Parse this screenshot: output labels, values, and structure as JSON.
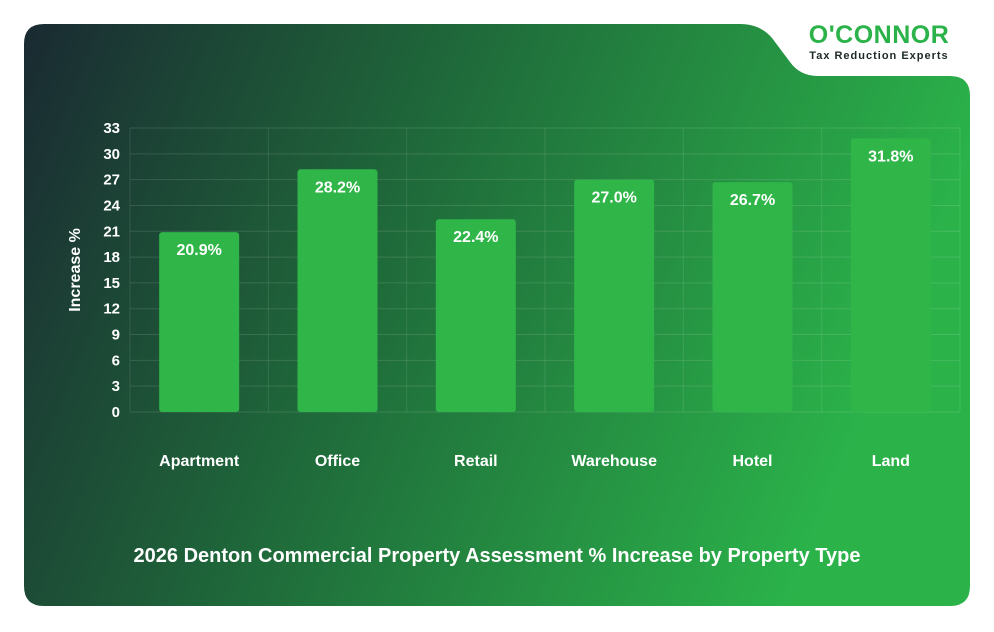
{
  "brand": {
    "name": "O'CONNOR",
    "tagline": "Tax Reduction Experts",
    "colors": {
      "accent": "#2bb34a",
      "dark": "#1c2f33",
      "bar": "#2fb548"
    }
  },
  "chart_data": {
    "type": "bar",
    "title": "2026 Denton Commercial Property Assessment % Increase by Property Type",
    "xlabel": "",
    "ylabel": "Increase %",
    "categories": [
      "Apartment",
      "Office",
      "Retail",
      "Warehouse",
      "Hotel",
      "Land"
    ],
    "values": [
      20.9,
      28.2,
      22.4,
      27.0,
      26.7,
      31.8
    ],
    "value_labels": [
      "20.9%",
      "28.2%",
      "22.4%",
      "27.0%",
      "26.7%",
      "31.8%"
    ],
    "ylim": [
      0,
      33
    ],
    "yticks": [
      0,
      3,
      6,
      9,
      12,
      15,
      18,
      21,
      24,
      27,
      30,
      33
    ],
    "grid": true,
    "legend": "none"
  }
}
